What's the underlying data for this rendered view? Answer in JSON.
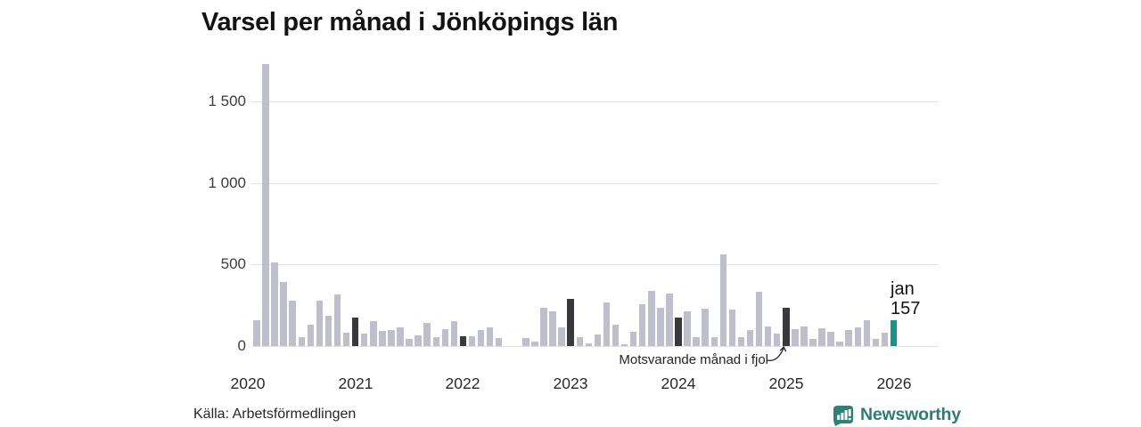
{
  "title": "Varsel per månad i Jönköpings län",
  "source": "Källa: Arbetsförmedlingen",
  "branding": {
    "name": "Newsworthy",
    "logo_icon": "bar-chart-badge-icon"
  },
  "annotation": {
    "text": "Motsvarande månad i fjol",
    "points_to": "jan 2025"
  },
  "current_label": {
    "line1": "jan",
    "line2": "157"
  },
  "colors": {
    "bar_normal": "#bfbfcb",
    "bar_fjol": "#39393d",
    "bar_current": "#17948a",
    "gridline": "#e2e2e5",
    "title_text": "#131313",
    "brand_teal": "#2e7d74"
  },
  "chart_data": {
    "type": "bar",
    "title": "Varsel per månad i Jönköpings län",
    "xlabel": "",
    "ylabel": "",
    "ylim": [
      0,
      1780
    ],
    "grid": "horizontal",
    "yticks": [
      0,
      500,
      1000,
      1500
    ],
    "ytick_labels": [
      "0",
      "500",
      "1 000",
      "1 500"
    ],
    "year_ticks": [
      "2020",
      "2021",
      "2022",
      "2023",
      "2024",
      "2025",
      "2026"
    ],
    "bar_kinds": {
      "normal": "månadsvärde",
      "fjol": "motsvarande månad i fjol (januari tidigare år)",
      "current": "senaste månad (jan 2026)"
    },
    "points": [
      {
        "m": "2020-02",
        "v": 160,
        "k": "normal"
      },
      {
        "m": "2020-03",
        "v": 1730,
        "k": "normal"
      },
      {
        "m": "2020-04",
        "v": 515,
        "k": "normal"
      },
      {
        "m": "2020-05",
        "v": 395,
        "k": "normal"
      },
      {
        "m": "2020-06",
        "v": 280,
        "k": "normal"
      },
      {
        "m": "2020-07",
        "v": 55,
        "k": "normal"
      },
      {
        "m": "2020-08",
        "v": 130,
        "k": "normal"
      },
      {
        "m": "2020-09",
        "v": 280,
        "k": "normal"
      },
      {
        "m": "2020-10",
        "v": 185,
        "k": "normal"
      },
      {
        "m": "2020-11",
        "v": 315,
        "k": "normal"
      },
      {
        "m": "2020-12",
        "v": 80,
        "k": "normal"
      },
      {
        "m": "2021-01",
        "v": 175,
        "k": "fjol"
      },
      {
        "m": "2021-02",
        "v": 75,
        "k": "normal"
      },
      {
        "m": "2021-03",
        "v": 150,
        "k": "normal"
      },
      {
        "m": "2021-04",
        "v": 95,
        "k": "normal"
      },
      {
        "m": "2021-05",
        "v": 100,
        "k": "normal"
      },
      {
        "m": "2021-06",
        "v": 115,
        "k": "normal"
      },
      {
        "m": "2021-07",
        "v": 45,
        "k": "normal"
      },
      {
        "m": "2021-08",
        "v": 65,
        "k": "normal"
      },
      {
        "m": "2021-09",
        "v": 140,
        "k": "normal"
      },
      {
        "m": "2021-10",
        "v": 55,
        "k": "normal"
      },
      {
        "m": "2021-11",
        "v": 105,
        "k": "normal"
      },
      {
        "m": "2021-12",
        "v": 155,
        "k": "normal"
      },
      {
        "m": "2022-01",
        "v": 60,
        "k": "fjol"
      },
      {
        "m": "2022-02",
        "v": 60,
        "k": "normal"
      },
      {
        "m": "2022-03",
        "v": 100,
        "k": "normal"
      },
      {
        "m": "2022-04",
        "v": 115,
        "k": "normal"
      },
      {
        "m": "2022-05",
        "v": 50,
        "k": "normal"
      },
      {
        "m": "2022-06",
        "v": 0,
        "k": "normal"
      },
      {
        "m": "2022-07",
        "v": 0,
        "k": "normal"
      },
      {
        "m": "2022-08",
        "v": 50,
        "k": "normal"
      },
      {
        "m": "2022-09",
        "v": 30,
        "k": "normal"
      },
      {
        "m": "2022-10",
        "v": 235,
        "k": "normal"
      },
      {
        "m": "2022-11",
        "v": 215,
        "k": "normal"
      },
      {
        "m": "2022-12",
        "v": 115,
        "k": "normal"
      },
      {
        "m": "2023-01",
        "v": 290,
        "k": "fjol"
      },
      {
        "m": "2023-02",
        "v": 55,
        "k": "normal"
      },
      {
        "m": "2023-03",
        "v": 15,
        "k": "normal"
      },
      {
        "m": "2023-04",
        "v": 70,
        "k": "normal"
      },
      {
        "m": "2023-05",
        "v": 265,
        "k": "normal"
      },
      {
        "m": "2023-06",
        "v": 130,
        "k": "normal"
      },
      {
        "m": "2023-07",
        "v": 10,
        "k": "normal"
      },
      {
        "m": "2023-08",
        "v": 85,
        "k": "normal"
      },
      {
        "m": "2023-09",
        "v": 255,
        "k": "normal"
      },
      {
        "m": "2023-10",
        "v": 340,
        "k": "normal"
      },
      {
        "m": "2023-11",
        "v": 235,
        "k": "normal"
      },
      {
        "m": "2023-12",
        "v": 320,
        "k": "normal"
      },
      {
        "m": "2024-01",
        "v": 175,
        "k": "fjol"
      },
      {
        "m": "2024-02",
        "v": 215,
        "k": "normal"
      },
      {
        "m": "2024-03",
        "v": 55,
        "k": "normal"
      },
      {
        "m": "2024-04",
        "v": 230,
        "k": "normal"
      },
      {
        "m": "2024-05",
        "v": 55,
        "k": "normal"
      },
      {
        "m": "2024-06",
        "v": 560,
        "k": "normal"
      },
      {
        "m": "2024-07",
        "v": 225,
        "k": "normal"
      },
      {
        "m": "2024-08",
        "v": 55,
        "k": "normal"
      },
      {
        "m": "2024-09",
        "v": 100,
        "k": "normal"
      },
      {
        "m": "2024-10",
        "v": 330,
        "k": "normal"
      },
      {
        "m": "2024-11",
        "v": 120,
        "k": "normal"
      },
      {
        "m": "2024-12",
        "v": 75,
        "k": "normal"
      },
      {
        "m": "2025-01",
        "v": 235,
        "k": "fjol"
      },
      {
        "m": "2025-02",
        "v": 105,
        "k": "normal"
      },
      {
        "m": "2025-03",
        "v": 120,
        "k": "normal"
      },
      {
        "m": "2025-04",
        "v": 45,
        "k": "normal"
      },
      {
        "m": "2025-05",
        "v": 110,
        "k": "normal"
      },
      {
        "m": "2025-06",
        "v": 85,
        "k": "normal"
      },
      {
        "m": "2025-07",
        "v": 30,
        "k": "normal"
      },
      {
        "m": "2025-08",
        "v": 100,
        "k": "normal"
      },
      {
        "m": "2025-09",
        "v": 115,
        "k": "normal"
      },
      {
        "m": "2025-10",
        "v": 160,
        "k": "normal"
      },
      {
        "m": "2025-11",
        "v": 45,
        "k": "normal"
      },
      {
        "m": "2025-12",
        "v": 80,
        "k": "normal"
      },
      {
        "m": "2026-01",
        "v": 157,
        "k": "current"
      }
    ]
  }
}
